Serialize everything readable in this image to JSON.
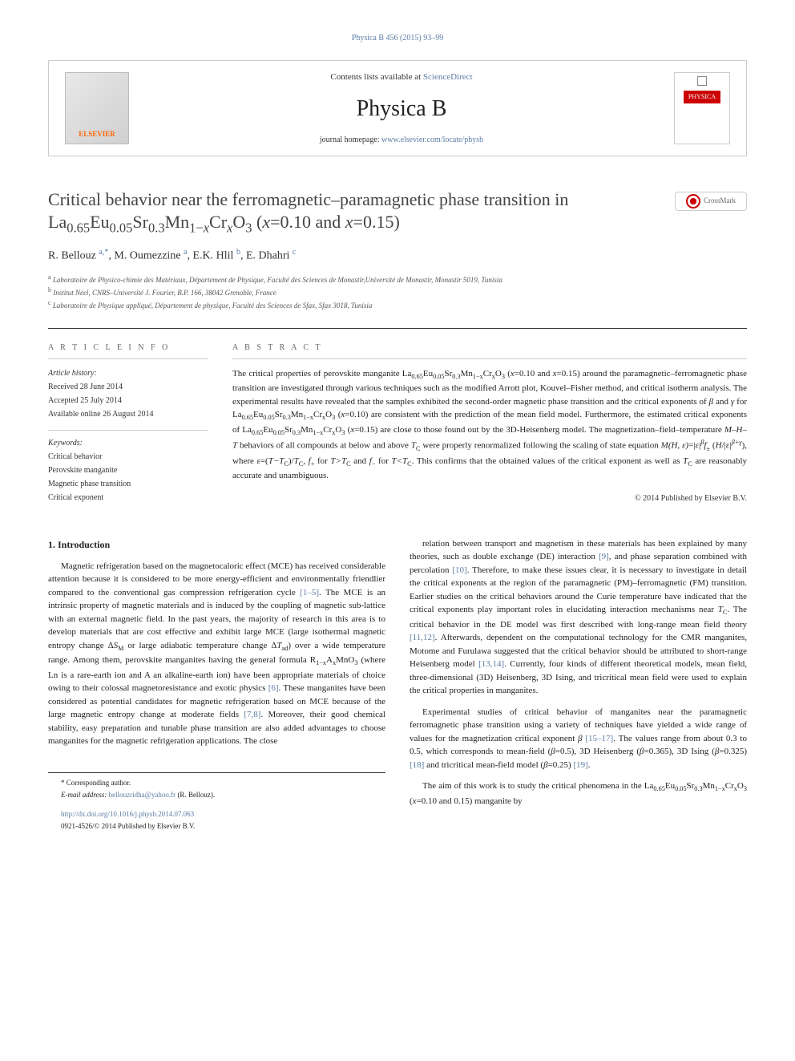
{
  "header": {
    "top_link": "Physica B 456 (2015) 93–99",
    "contents_line_prefix": "Contents lists available at ",
    "contents_link": "ScienceDirect",
    "journal_name": "Physica B",
    "homepage_prefix": "journal homepage: ",
    "homepage_url": "www.elsevier.com/locate/physb",
    "elsevier_label": "ELSEVIER",
    "crossmark_label": "CrossMark"
  },
  "article": {
    "title_html": "Critical behavior near the ferromagnetic–paramagnetic phase transition in La<span class='sub'>0.65</span>Eu<span class='sub'>0.05</span>Sr<span class='sub'>0.3</span>Mn<span class='sub'>1−<span class='ital'>x</span></span>Cr<span class='sub ital'>x</span>O<span class='sub'>3</span> (<span class='ital'>x</span>=0.10 and <span class='ital'>x</span>=0.15)",
    "authors_html": "R. Bellouz <span class='affil-link'>a,*</span>, M. Oumezzine <span class='affil-link'>a</span>, E.K. Hlil <span class='affil-link'>b</span>, E. Dhahri <span class='affil-link'>c</span>",
    "affiliations": [
      {
        "sup": "a",
        "text": "Laboratoire de Physico-chimie des Matériaux, Département de Physique, Faculté des Sciences de Monastir,Université de Monastir, Monastir 5019, Tunisia"
      },
      {
        "sup": "b",
        "text": "Institut Néel, CNRS–Université J. Fourier, B.P. 166, 38042 Grenoble, France"
      },
      {
        "sup": "c",
        "text": "Laboratoire de Physique appliqué, Département de physique, Faculté des Sciences de Sfax, Sfax 3018, Tunisia"
      }
    ]
  },
  "article_info": {
    "heading": "A R T I C L E  I N F O",
    "history_label": "Article history:",
    "received": "Received 28 June 2014",
    "accepted": "Accepted 25 July 2014",
    "online": "Available online 26 August 2014",
    "keywords_label": "Keywords:",
    "keywords": [
      "Critical behavior",
      "Perovskite manganite",
      "Magnetic phase transition",
      "Critical exponent"
    ]
  },
  "abstract": {
    "heading": "A B S T R A C T",
    "text_html": "The critical properties of perovskite manganite La<span class='sub'>0.65</span>Eu<span class='sub'>0.05</span>Sr<span class='sub'>0.3</span>Mn<span class='sub'>1−x</span>Cr<span class='sub'>x</span>O<span class='sub'>3</span> (<span class='ital'>x</span>=0.10 and <span class='ital'>x</span>=0.15) around the paramagnetic–ferromagnetic phase transition are investigated through various techniques such as the modified Arrott plot, Kouvel–Fisher method, and critical isotherm analysis. The experimental results have revealed that the samples exhibited the second-order magnetic phase transition and the critical exponents of <span class='ital'>β</span> and <span class='ital'>γ</span> for La<span class='sub'>0.65</span>Eu<span class='sub'>0.05</span>Sr<span class='sub'>0.3</span>Mn<span class='sub'>1−x</span>Cr<span class='sub'>x</span>O<span class='sub'>3</span> (<span class='ital'>x</span>=0.10) are consistent with the prediction of the mean field model. Furthermore, the estimated critical exponents of La<span class='sub'>0.65</span>Eu<span class='sub'>0.05</span>Sr<span class='sub'>0.3</span>Mn<span class='sub'>1−x</span>Cr<span class='sub'>x</span>O<span class='sub'>3</span> (<span class='ital'>x</span>=0.15) are close to those found out by the 3D-Heisenberg model. The magnetization–field–temperature <span class='ital'>M–H–T</span> behaviors of all compounds at below and above <span class='ital'>T</span><span class='sub'>C</span> were properly renormalized following the scaling of state equation <span class='ital'>M(H, ε)</span>=|ε|<span class='sup ital'>β</span><span class='ital'>f</span><span class='sub'>±</span> (<span class='ital'>H</span>/|ε|<span class='sup ital'>β+γ</span>), where <span class='ital'>ε</span>=(<span class='ital'>T−T</span><span class='sub'>C</span>)/<span class='ital'>T</span><span class='sub'>C</span>, <span class='ital'>f</span><span class='sub'>+</span> for <span class='ital'>T&gt;T</span><span class='sub'>C</span> and <span class='ital'>f</span><span class='sub'>−</span> for <span class='ital'>T&lt;T</span><span class='sub'>C</span>. This confirms that the obtained values of the critical exponent as well as <span class='ital'>T</span><span class='sub'>C</span> are reasonably accurate and unambiguous.",
    "copyright": "© 2014 Published by Elsevier B.V."
  },
  "body": {
    "section_heading": "1.  Introduction",
    "col1_paragraphs_html": [
      "Magnetic refrigeration based on the magnetocaloric effect (MCE) has received considerable attention because it is considered to be more energy-efficient and environmentally friendlier compared to the conventional gas compression refrigeration cycle <span class='ref-link'>[1–5]</span>. The MCE is an intrinsic property of magnetic materials and is induced by the coupling of magnetic sub-lattice with an external magnetic field. In the past years, the majority of research in this area is to develop materials that are cost effective and exhibit large MCE (large isothermal magnetic entropy change Δ<span class='ital'>S</span><span class='sub'>M</span> or large adiabatic temperature change Δ<span class='ital'>T</span><span class='sub'>ad</span>) over a wide temperature range. Among them, perovskite manganites having the general formula R<span class='sub'>1−x</span>A<span class='sub'>x</span>MnO<span class='sub'>3</span> (where Ln is a rare-earth ion and A an alkaline-earth ion) have been appropriate materials of choice owing to their colossal magnetoresistance and exotic physics <span class='ref-link'>[6]</span>. These manganites have been considered as potential candidates for magnetic refrigeration based on MCE because of the large magnetic entropy change at moderate fields <span class='ref-link'>[7,8]</span>. Moreover, their good chemical stability, easy preparation and tunable phase transition are also added advantages to choose manganites for the magnetic refrigeration applications. The close"
    ],
    "col2_paragraphs_html": [
      "relation between transport and magnetism in these materials has been explained by many theories, such as double exchange (DE) interaction <span class='ref-link'>[9]</span>, and phase separation combined with percolation <span class='ref-link'>[10]</span>. Therefore, to make these issues clear, it is necessary to investigate in detail the critical exponents at the region of the paramagnetic (PM)–ferromagnetic (FM) transition. Earlier studies on the critical behaviors around the Curie temperature have indicated that the critical exponents play important roles in elucidating interaction mechanisms near <span class='ital'>T</span><span class='sub'>C</span>. The critical behavior in the DE model was first described with long-range mean field theory <span class='ref-link'>[11,12]</span>. Afterwards, dependent on the computational technology for the CMR manganites, Motome and Furulawa suggested that the critical behavior should be attributed to short-range Heisenberg model <span class='ref-link'>[13,14]</span>. Currently, four kinds of different theoretical models, mean field, three-dimensional (3D) Heisenberg, 3D Ising, and tricritical mean field were used to explain the critical properties in manganites.",
      "Experimental studies of critical behavior of manganites near the paramagnetic ferromagnetic phase transition using a variety of techniques have yielded a wide range of values for the magnetization critical exponent <span class='ital'>β</span> <span class='ref-link'>[15–17]</span>. The values range from about 0.3 to 0.5, which corresponds to mean-field (<span class='ital'>β</span>=0.5), 3D Heisenberg (<span class='ital'>β</span>=0.365), 3D Ising (<span class='ital'>β</span>=0.325) <span class='ref-link'>[18]</span> and tricritical mean-field model (<span class='ital'>β</span>=0.25) <span class='ref-link'>[19]</span>.",
      "The aim of this work is to study the critical phenomena in the La<span class='sub'>0.65</span>Eu<span class='sub'>0.05</span>Sr<span class='sub'>0.3</span>Mn<span class='sub'>1−x</span>Cr<span class='sub'>x</span>O<span class='sub'>3</span> (<span class='ital'>x</span>=0.10 and 0.15) manganite by"
    ]
  },
  "footer": {
    "corresponding": "* Corresponding author.",
    "email_label": "E-mail address: ",
    "email": "bellouzridha@yahoo.fr",
    "email_suffix": " (R. Bellouz).",
    "doi": "http://dx.doi.org/10.1016/j.physb.2014.07.063",
    "issn_line": "0921-4526/© 2014 Published by Elsevier B.V."
  },
  "colors": {
    "link": "#5b7ca3",
    "text": "#333333",
    "border": "#cccccc",
    "elsevier_orange": "#ff6600"
  }
}
